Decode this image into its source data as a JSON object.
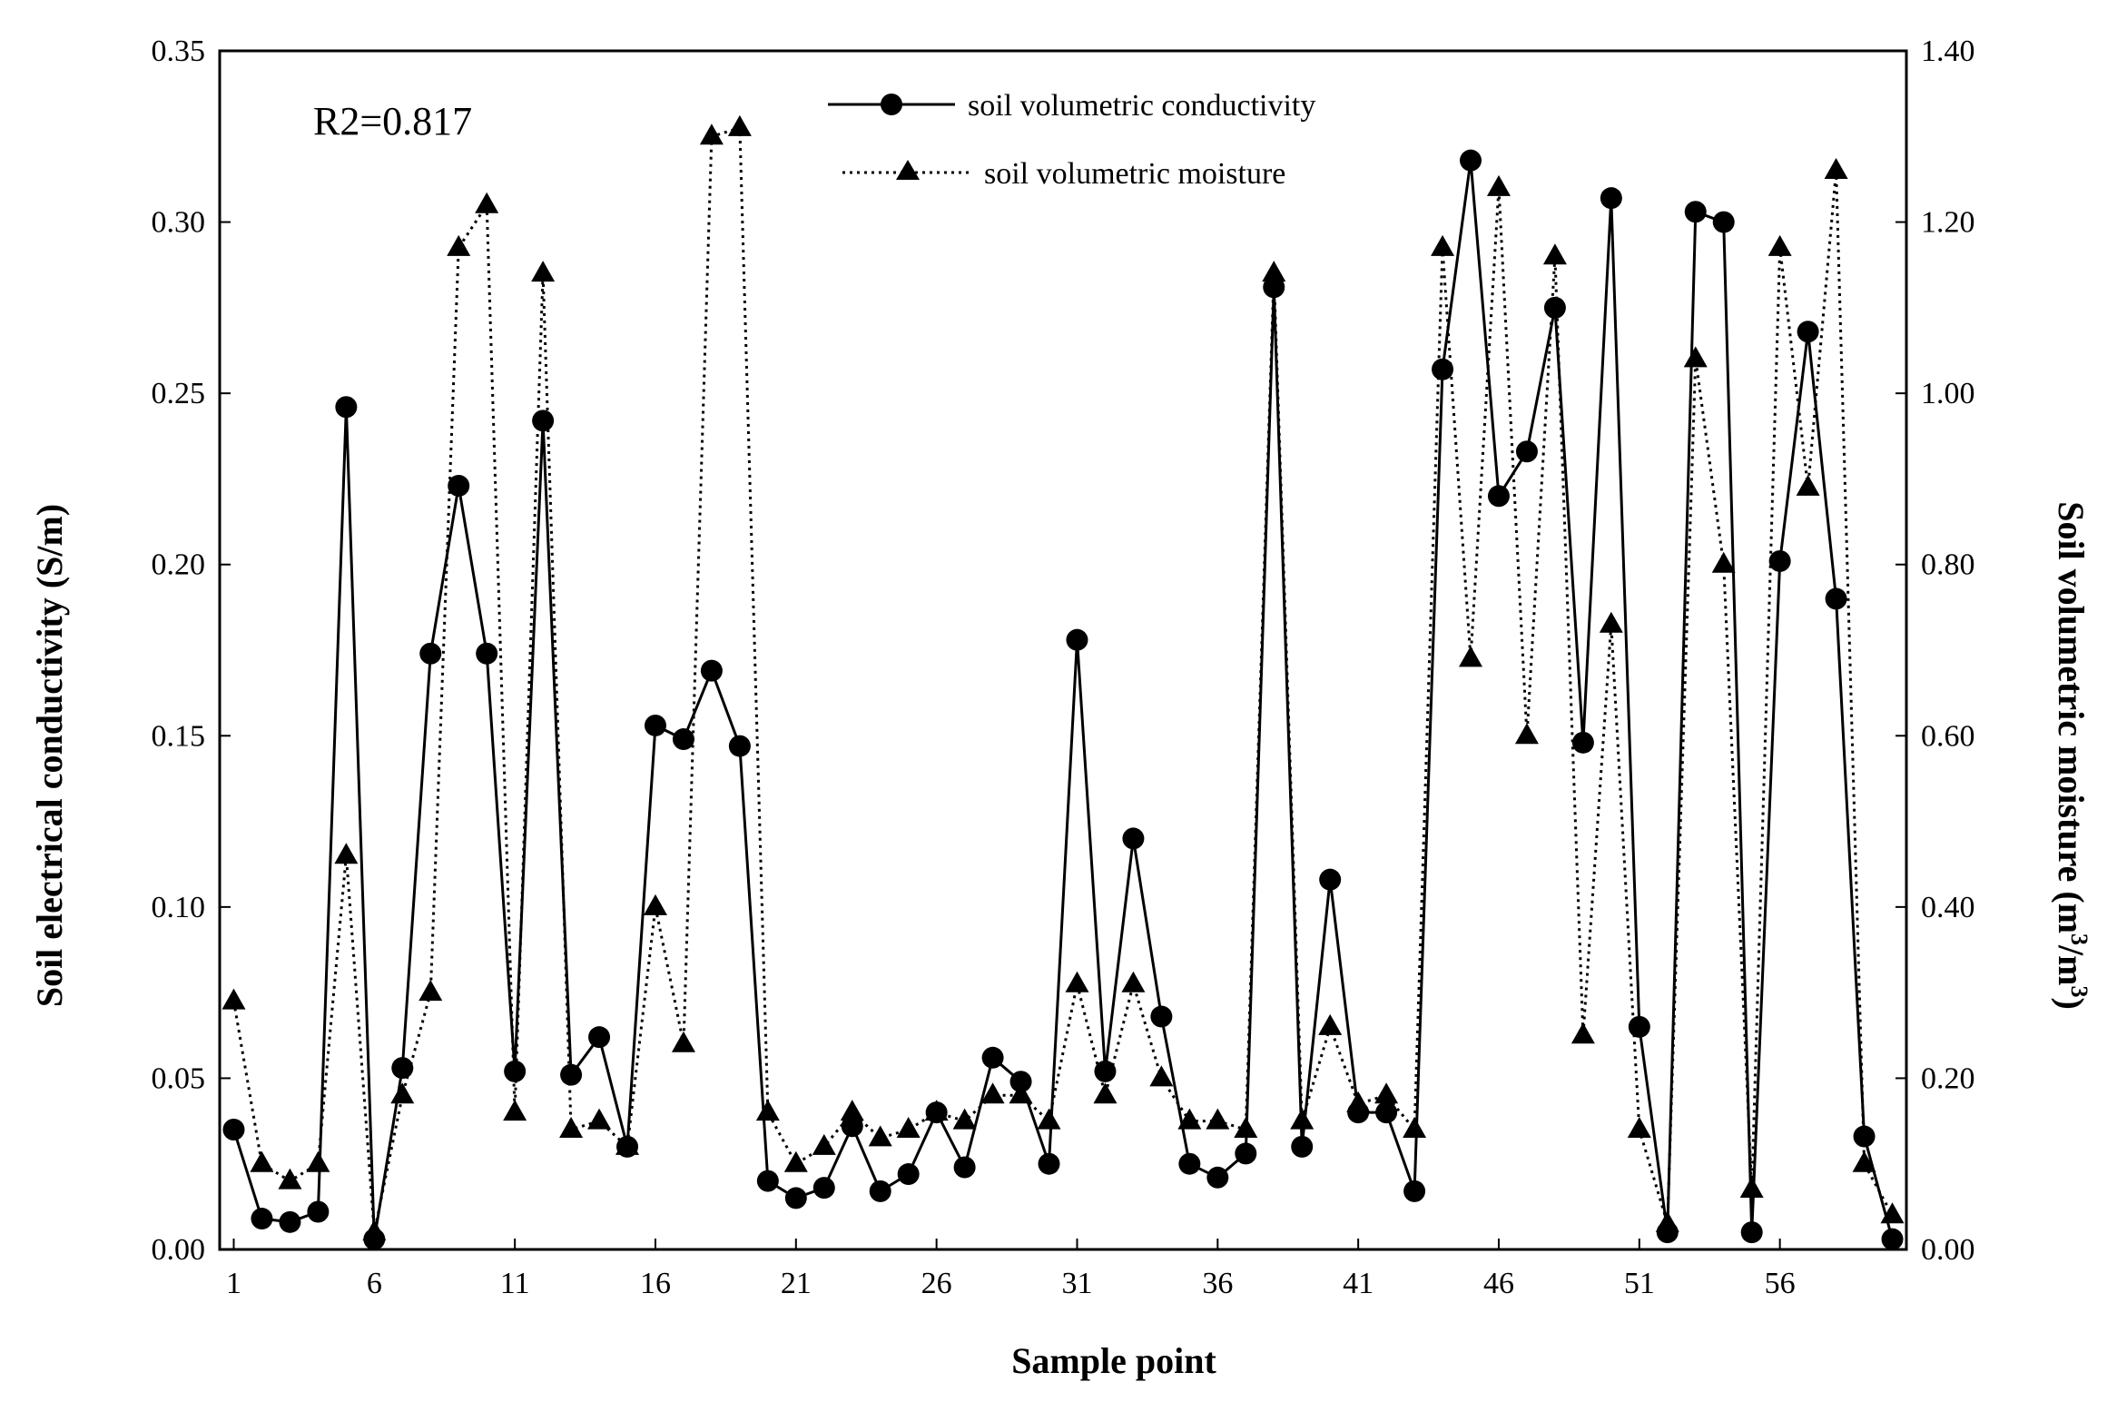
{
  "chart_data": {
    "type": "line",
    "annotation": "R2=0.817",
    "xlabel": "Sample point",
    "ylabel_left": "Soil electrical conductivity (S/m)",
    "ylabel_right_parts": [
      "Soil volumetric moisture (m",
      "3",
      "/m",
      "3",
      ")"
    ],
    "x": [
      1,
      2,
      3,
      4,
      5,
      6,
      7,
      8,
      9,
      10,
      11,
      12,
      13,
      14,
      15,
      16,
      17,
      18,
      19,
      20,
      21,
      22,
      23,
      24,
      25,
      26,
      27,
      28,
      29,
      30,
      31,
      32,
      33,
      34,
      35,
      36,
      37,
      38,
      39,
      40,
      41,
      42,
      43,
      44,
      45,
      46,
      47,
      48,
      49,
      50,
      51,
      52,
      53,
      54,
      55,
      56,
      57,
      58,
      59,
      60
    ],
    "xlim": [
      0.5,
      60.5
    ],
    "xticks": [
      "1",
      "6",
      "11",
      "16",
      "21",
      "26",
      "31",
      "36",
      "41",
      "46",
      "51",
      "56"
    ],
    "xtick_values": [
      1,
      6,
      11,
      16,
      21,
      26,
      31,
      36,
      41,
      46,
      51,
      56
    ],
    "ylim_left": [
      0,
      0.35
    ],
    "yticks_left": [
      "0.00",
      "0.05",
      "0.10",
      "0.15",
      "0.20",
      "0.25",
      "0.30",
      "0.35"
    ],
    "ytick_values_left": [
      0,
      0.05,
      0.1,
      0.15,
      0.2,
      0.25,
      0.3,
      0.35
    ],
    "ylim_right": [
      0,
      1.4
    ],
    "yticks_right": [
      "0.00",
      "0.20",
      "0.40",
      "0.60",
      "0.80",
      "1.00",
      "1.20",
      "1.40"
    ],
    "ytick_values_right": [
      0,
      0.2,
      0.4,
      0.6,
      0.8,
      1.0,
      1.2,
      1.4
    ],
    "legend_position": "top-center",
    "series": [
      {
        "name": "soil volumetric conductivity",
        "axis": "left",
        "style": "solid",
        "marker": "circle",
        "values": [
          0.035,
          0.009,
          0.008,
          0.011,
          0.246,
          0.003,
          0.053,
          0.174,
          0.223,
          0.174,
          0.052,
          0.242,
          0.051,
          0.062,
          0.03,
          0.153,
          0.149,
          0.169,
          0.147,
          0.02,
          0.015,
          0.018,
          0.036,
          0.017,
          0.022,
          0.04,
          0.024,
          0.056,
          0.049,
          0.025,
          0.178,
          0.052,
          0.12,
          0.068,
          0.025,
          0.021,
          0.028,
          0.281,
          0.03,
          0.108,
          0.04,
          0.04,
          0.017,
          0.257,
          0.318,
          0.22,
          0.233,
          0.275,
          0.148,
          0.307,
          0.065,
          0.005,
          0.303,
          0.3,
          0.005,
          0.201,
          0.268,
          0.19,
          0.033,
          0.003
        ]
      },
      {
        "name": "soil volumetric moisture",
        "axis": "right",
        "style": "dotted",
        "marker": "triangle",
        "values": [
          0.29,
          0.1,
          0.08,
          0.1,
          0.46,
          0.02,
          0.18,
          0.3,
          1.17,
          1.22,
          0.16,
          1.14,
          0.14,
          0.15,
          0.12,
          0.4,
          0.24,
          1.3,
          1.31,
          0.16,
          0.1,
          0.12,
          0.16,
          0.13,
          0.14,
          0.16,
          0.15,
          0.18,
          0.18,
          0.15,
          0.31,
          0.18,
          0.31,
          0.2,
          0.15,
          0.15,
          0.14,
          1.14,
          0.15,
          0.26,
          0.17,
          0.18,
          0.14,
          1.17,
          0.69,
          1.24,
          0.6,
          1.16,
          0.25,
          0.73,
          0.14,
          0.03,
          1.04,
          0.8,
          0.07,
          1.17,
          0.89,
          1.26,
          0.1,
          0.04
        ]
      }
    ]
  }
}
